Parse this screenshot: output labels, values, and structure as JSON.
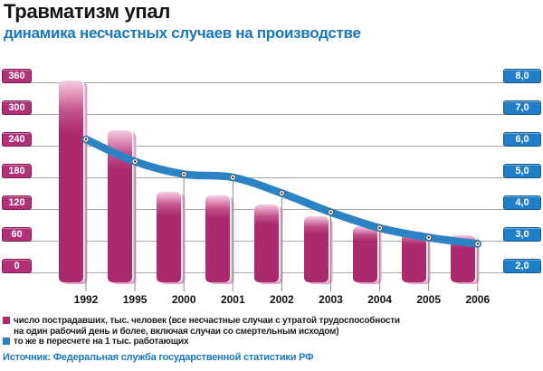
{
  "header": {
    "title": "Травматизм упал",
    "subtitle": "динамика несчастных случаев на производстве"
  },
  "chart_data": {
    "type": "bar",
    "title": "Травматизм упал — динамика несчастных случаев на производстве",
    "categories": [
      "1992",
      "1995",
      "2000",
      "2001",
      "2002",
      "2003",
      "2004",
      "2005",
      "2006"
    ],
    "series": [
      {
        "name": "число пострадавших, тыс. человек",
        "type": "bar",
        "axis": "left",
        "color": "#ab2a6e",
        "values": [
          363,
          270,
          152,
          145,
          128,
          107,
          88,
          78,
          71
        ]
      },
      {
        "name": "то же в пересчете на 1 тыс. работающих",
        "type": "line",
        "axis": "right",
        "color": "#2b83c4",
        "values": [
          6.2,
          5.5,
          5.1,
          5.0,
          4.5,
          3.9,
          3.4,
          3.1,
          2.9
        ]
      }
    ],
    "left_axis": {
      "ticks": [
        360,
        300,
        240,
        180,
        120,
        60,
        0
      ],
      "range": [
        0,
        360
      ],
      "box_color": "#b23077"
    },
    "right_axis": {
      "ticks": [
        8.0,
        7.0,
        6.0,
        5.0,
        4.0,
        3.0,
        2.0
      ],
      "range": [
        2,
        8
      ],
      "decimal_separator": ",",
      "box_color": "#1f7ec5"
    },
    "grid": true,
    "legend_position": "bottom"
  },
  "legend": {
    "items": [
      {
        "color": "#ab2a6e",
        "label_lines": [
          "число пострадавших, тыс. человек (все несчастные случаи с утратой трудоспособности",
          "на один рабочий день и более, включая случаи со смертельным исходом)"
        ]
      },
      {
        "color": "#2b83c4",
        "label_lines": [
          "то же в пересчете на 1 тыс. работающих"
        ]
      }
    ]
  },
  "source": "Источник: Федеральная служба государственной статистики РФ"
}
